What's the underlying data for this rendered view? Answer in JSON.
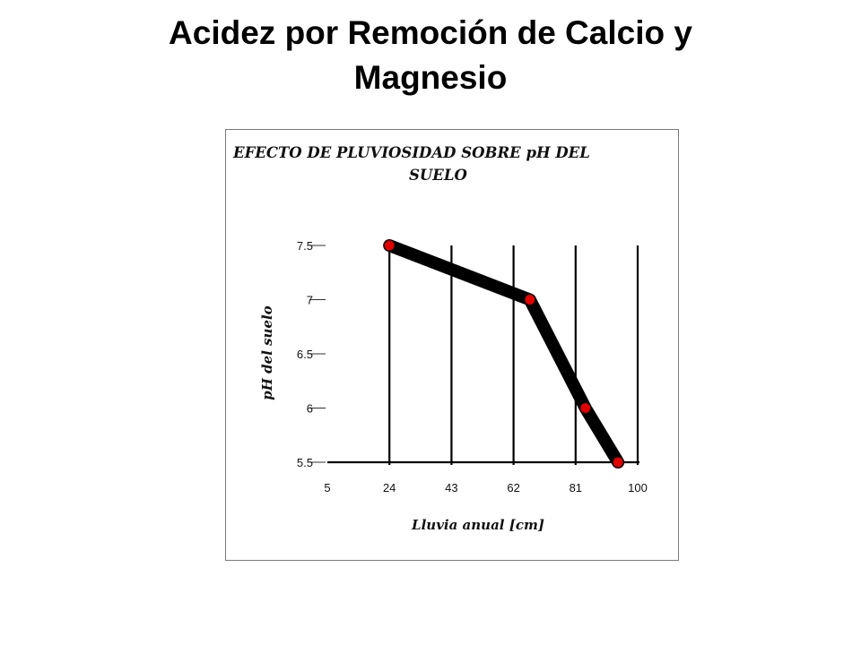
{
  "slide": {
    "title": "Acidez por Remoción de Calcio y Magnesio"
  },
  "chart_data": {
    "type": "line",
    "title_lines": [
      "EFECTO DE PLUVIOSIDAD SOBRE pH DEL",
      "SUELO"
    ],
    "xlabel": "Lluvia anual [cm]",
    "ylabel": "pH del suelo",
    "x_ticks": [
      "5",
      "24",
      "43",
      "62",
      "81",
      "100"
    ],
    "y_ticks": [
      "5.5",
      "6",
      "6.5",
      "7",
      "7.5"
    ],
    "xlim": [
      5,
      100
    ],
    "ylim": [
      5.5,
      7.5
    ],
    "grid": "vertical",
    "series": [
      {
        "x": [
          24,
          67,
          84,
          94
        ],
        "y": [
          7.5,
          7.0,
          6.0,
          5.5
        ]
      }
    ],
    "colors": {
      "line": "#000000",
      "points": "#e00000",
      "grid": "#000000"
    }
  }
}
